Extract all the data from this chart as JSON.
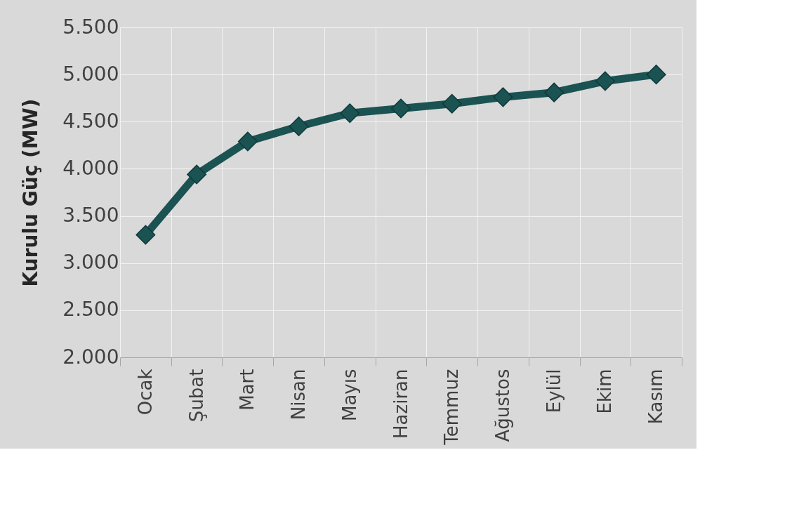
{
  "chart_data": {
    "type": "line",
    "ylabel": "Kurulu Güç (MW)",
    "categories": [
      "Ocak",
      "Şubat",
      "Mart",
      "Nisan",
      "Mayıs",
      "Haziran",
      "Temmuz",
      "Ağustos",
      "Eylül",
      "Ekim",
      "Kasım"
    ],
    "series": [
      {
        "color": "#1b5252",
        "values": [
          3300,
          3940,
          4290,
          4450,
          4590,
          4640,
          4690,
          4760,
          4810,
          4930,
          5000
        ]
      }
    ],
    "ylim": [
      2000,
      5500
    ],
    "yticks": [
      {
        "value": 2000,
        "label": "2.000"
      },
      {
        "value": 2500,
        "label": "2.500"
      },
      {
        "value": 3000,
        "label": "3.000"
      },
      {
        "value": 3500,
        "label": "3.500"
      },
      {
        "value": 4000,
        "label": "4.000"
      },
      {
        "value": 4500,
        "label": "4.500"
      },
      {
        "value": 5000,
        "label": "5.000"
      },
      {
        "value": 5500,
        "label": "5.500"
      }
    ],
    "grid": true,
    "marker": "diamond",
    "line_style": "solid"
  }
}
